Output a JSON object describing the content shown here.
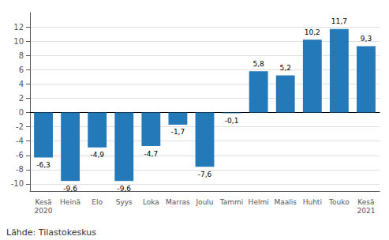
{
  "chart_data": {
    "type": "bar",
    "categories": [
      "Kesä\n2020",
      "Heinä",
      "Elo",
      "Syys",
      "Loka",
      "Marras",
      "Joulu",
      "Tammi",
      "Helmi",
      "Maalis",
      "Huhti",
      "Touko",
      "Kesä\n2021"
    ],
    "values": [
      -6.3,
      -9.6,
      -4.9,
      -9.6,
      -4.7,
      -1.7,
      -7.6,
      -0.1,
      5.8,
      5.2,
      10.2,
      11.7,
      9.3
    ],
    "value_labels": [
      "-6,3",
      "-9,6",
      "-4,9",
      "-9,6",
      "-4,7",
      "-1,7",
      "-7,6",
      "-0,1",
      "5,8",
      "5,2",
      "10,2",
      "11,7",
      "9,3"
    ],
    "color": "#2479b8",
    "ylim": [
      -11,
      14
    ],
    "yticks": [
      -10,
      -8,
      -6,
      -4,
      -2,
      0,
      2,
      4,
      6,
      8,
      10,
      12
    ],
    "grid": true,
    "data_labels": true,
    "annotations": [
      "Lähde: Tilastokeskus"
    ]
  }
}
